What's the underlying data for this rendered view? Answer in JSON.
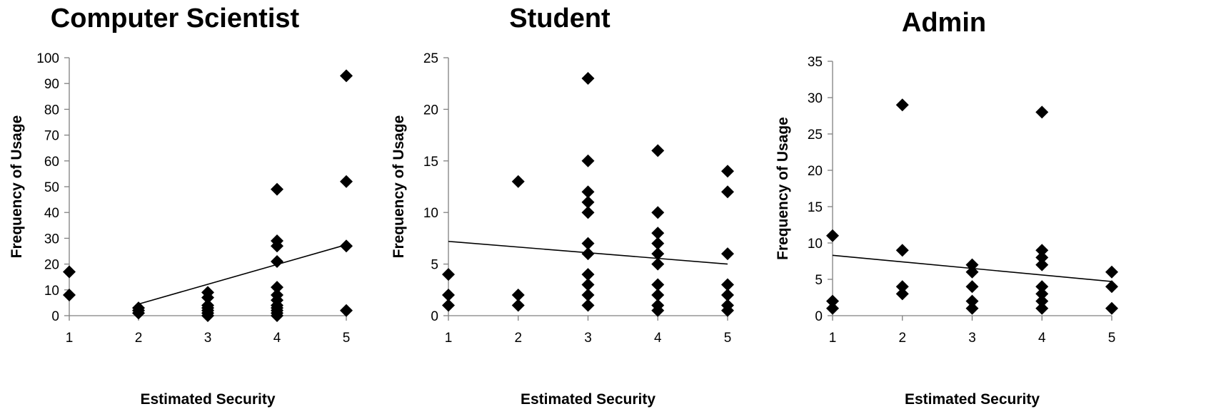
{
  "chart_data": [
    {
      "type": "scatter",
      "title": "Computer Scientist",
      "xlabel": "Estimated Security",
      "ylabel": "Frequency of Usage",
      "xlim": [
        1,
        5
      ],
      "ylim": [
        0,
        100
      ],
      "xticks": [
        1,
        2,
        3,
        4,
        5
      ],
      "yticks": [
        0,
        10,
        20,
        30,
        40,
        50,
        60,
        70,
        80,
        90,
        100
      ],
      "marker": "diamond",
      "points": [
        [
          1,
          17
        ],
        [
          1,
          8
        ],
        [
          2,
          3
        ],
        [
          2,
          2
        ],
        [
          2,
          1
        ],
        [
          3,
          9
        ],
        [
          3,
          7
        ],
        [
          3,
          4
        ],
        [
          3,
          3
        ],
        [
          3,
          2
        ],
        [
          3,
          1
        ],
        [
          3,
          0
        ],
        [
          4,
          49
        ],
        [
          4,
          29
        ],
        [
          4,
          27
        ],
        [
          4,
          21
        ],
        [
          4,
          11
        ],
        [
          4,
          8
        ],
        [
          4,
          6
        ],
        [
          4,
          4
        ],
        [
          4,
          3
        ],
        [
          4,
          2
        ],
        [
          4,
          1
        ],
        [
          4,
          0
        ],
        [
          5,
          93
        ],
        [
          5,
          52
        ],
        [
          5,
          27
        ],
        [
          5,
          2
        ]
      ],
      "trendline": {
        "x": [
          2,
          5
        ],
        "y": [
          4.5,
          27.5
        ]
      }
    },
    {
      "type": "scatter",
      "title": "Student",
      "xlabel": "Estimated Security",
      "ylabel": "Frequency of Usage",
      "xlim": [
        1,
        5
      ],
      "ylim": [
        0,
        25
      ],
      "xticks": [
        1,
        2,
        3,
        4,
        5
      ],
      "yticks": [
        0,
        5,
        10,
        15,
        20,
        25
      ],
      "marker": "diamond",
      "points": [
        [
          1,
          4
        ],
        [
          1,
          2
        ],
        [
          1,
          1
        ],
        [
          2,
          13
        ],
        [
          2,
          2
        ],
        [
          2,
          1
        ],
        [
          3,
          23
        ],
        [
          3,
          15
        ],
        [
          3,
          12
        ],
        [
          3,
          11
        ],
        [
          3,
          10
        ],
        [
          3,
          7
        ],
        [
          3,
          6
        ],
        [
          3,
          4
        ],
        [
          3,
          3
        ],
        [
          3,
          2
        ],
        [
          3,
          1
        ],
        [
          4,
          16
        ],
        [
          4,
          10
        ],
        [
          4,
          8
        ],
        [
          4,
          7
        ],
        [
          4,
          6
        ],
        [
          4,
          5
        ],
        [
          4,
          3
        ],
        [
          4,
          2
        ],
        [
          4,
          1
        ],
        [
          4,
          0.5
        ],
        [
          5,
          14
        ],
        [
          5,
          12
        ],
        [
          5,
          6
        ],
        [
          5,
          3
        ],
        [
          5,
          2
        ],
        [
          5,
          1
        ],
        [
          5,
          0.5
        ]
      ],
      "trendline": {
        "x": [
          1,
          5
        ],
        "y": [
          7.2,
          5.0
        ]
      }
    },
    {
      "type": "scatter",
      "title": "Admin",
      "xlabel": "Estimated Security",
      "ylabel": "Frequency of Usage",
      "xlim": [
        1,
        5
      ],
      "ylim": [
        0,
        35
      ],
      "xticks": [
        1,
        2,
        3,
        4,
        5
      ],
      "yticks": [
        0,
        5,
        10,
        15,
        20,
        25,
        30,
        35
      ],
      "marker": "diamond",
      "points": [
        [
          1,
          11
        ],
        [
          1,
          2
        ],
        [
          1,
          1
        ],
        [
          2,
          29
        ],
        [
          2,
          9
        ],
        [
          2,
          4
        ],
        [
          2,
          3
        ],
        [
          3,
          7
        ],
        [
          3,
          6
        ],
        [
          3,
          4
        ],
        [
          3,
          2
        ],
        [
          3,
          1
        ],
        [
          4,
          28
        ],
        [
          4,
          9
        ],
        [
          4,
          8
        ],
        [
          4,
          7
        ],
        [
          4,
          4
        ],
        [
          4,
          3
        ],
        [
          4,
          2
        ],
        [
          4,
          1
        ],
        [
          5,
          6
        ],
        [
          5,
          4
        ],
        [
          5,
          1
        ]
      ],
      "trendline": {
        "x": [
          1,
          5
        ],
        "y": [
          8.3,
          4.7
        ]
      }
    }
  ]
}
